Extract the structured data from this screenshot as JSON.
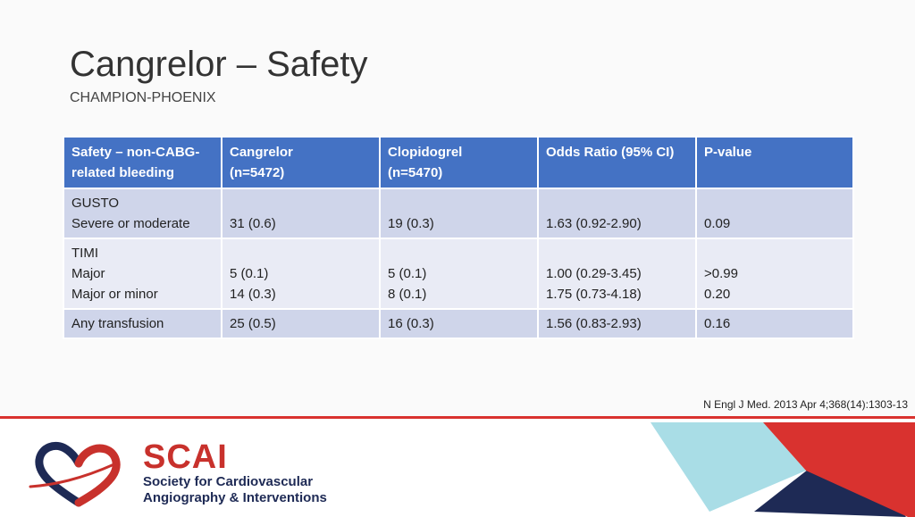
{
  "slide": {
    "title": "Cangrelor – Safety",
    "subtitle": "CHAMPION-PHOENIX",
    "citation": "N Engl J Med. 2013 Apr 4;368(14):1303-13"
  },
  "table": {
    "headers": [
      [
        "Safety – non-CABG-",
        "related bleeding"
      ],
      [
        "Cangrelor",
        "(n=5472)"
      ],
      [
        "Clopidogrel",
        "(n=5470)"
      ],
      [
        "Odds Ratio (95% CI)"
      ],
      [
        "P-value"
      ]
    ],
    "rows": [
      {
        "label": [
          "GUSTO",
          "Severe or moderate"
        ],
        "cangrelor": [
          "31 (0.6)"
        ],
        "clopidogrel": [
          "19 (0.3)"
        ],
        "odds_ratio": [
          "1.63 (0.92-2.90)"
        ],
        "p_value": [
          "0.09"
        ]
      },
      {
        "label": [
          "TIMI",
          "Major",
          "Major or minor"
        ],
        "cangrelor": [
          "5 (0.1)",
          "14 (0.3)"
        ],
        "clopidogrel": [
          "5 (0.1)",
          "8 (0.1)"
        ],
        "odds_ratio": [
          "1.00 (0.29-3.45)",
          "1.75 (0.73-4.18)"
        ],
        "p_value": [
          ">0.99",
          "0.20"
        ]
      },
      {
        "label": [
          "Any transfusion"
        ],
        "cangrelor": [
          "25 (0.5)"
        ],
        "clopidogrel": [
          "16 (0.3)"
        ],
        "odds_ratio": [
          "1.56 (0.83-2.93)"
        ],
        "p_value": [
          "0.16"
        ]
      }
    ]
  },
  "footer": {
    "brand": "SCAI",
    "brand_line1": "Society for Cardiovascular",
    "brand_line2": "Angiography & Interventions",
    "colors": {
      "red": "#d9322f",
      "navy": "#1e2a55",
      "light_blue": "#a9dde6"
    }
  }
}
